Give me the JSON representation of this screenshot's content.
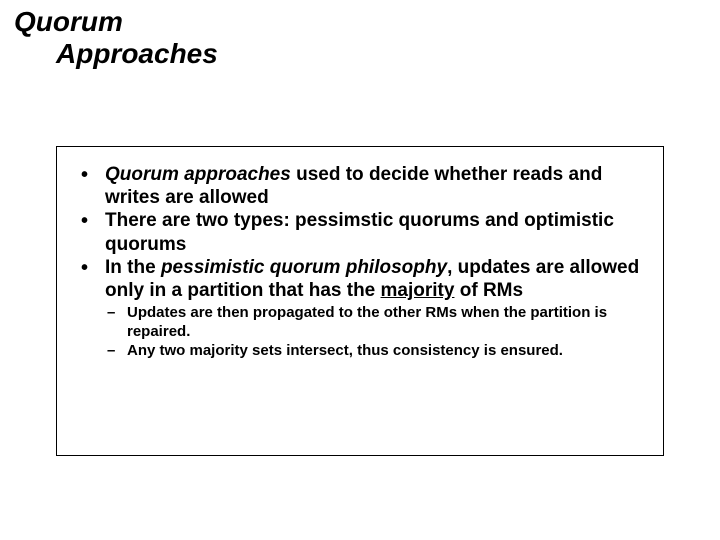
{
  "title": {
    "line1": "Quorum",
    "line2": "Approaches"
  },
  "bullets": [
    {
      "segments": [
        {
          "text": "Quorum approaches",
          "italic": true,
          "underline": false
        },
        {
          "text": " used to decide whether reads and writes are allowed",
          "italic": false,
          "underline": false
        }
      ]
    },
    {
      "segments": [
        {
          "text": "There are two types: pessimstic quorums and optimistic quorums",
          "italic": false,
          "underline": false
        }
      ]
    },
    {
      "segments": [
        {
          "text": "In the ",
          "italic": false,
          "underline": false
        },
        {
          "text": "pessimistic quorum philosophy",
          "italic": true,
          "underline": false
        },
        {
          "text": ", updates are allowed only in a partition that has the ",
          "italic": false,
          "underline": false
        },
        {
          "text": "majority",
          "italic": false,
          "underline": true
        },
        {
          "text": " of RMs",
          "italic": false,
          "underline": false
        }
      ],
      "sub": [
        {
          "text": "Updates are then propagated to the other RMs when the partition is repaired."
        },
        {
          "text": "Any two majority sets intersect, thus consistency is ensured."
        }
      ]
    }
  ],
  "colors": {
    "background": "#ffffff",
    "text": "#000000",
    "border": "#000000"
  },
  "fonts": {
    "title_size_pt": 28,
    "bullet_size_pt": 19,
    "sub_bullet_size_pt": 15,
    "family": "Arial"
  }
}
